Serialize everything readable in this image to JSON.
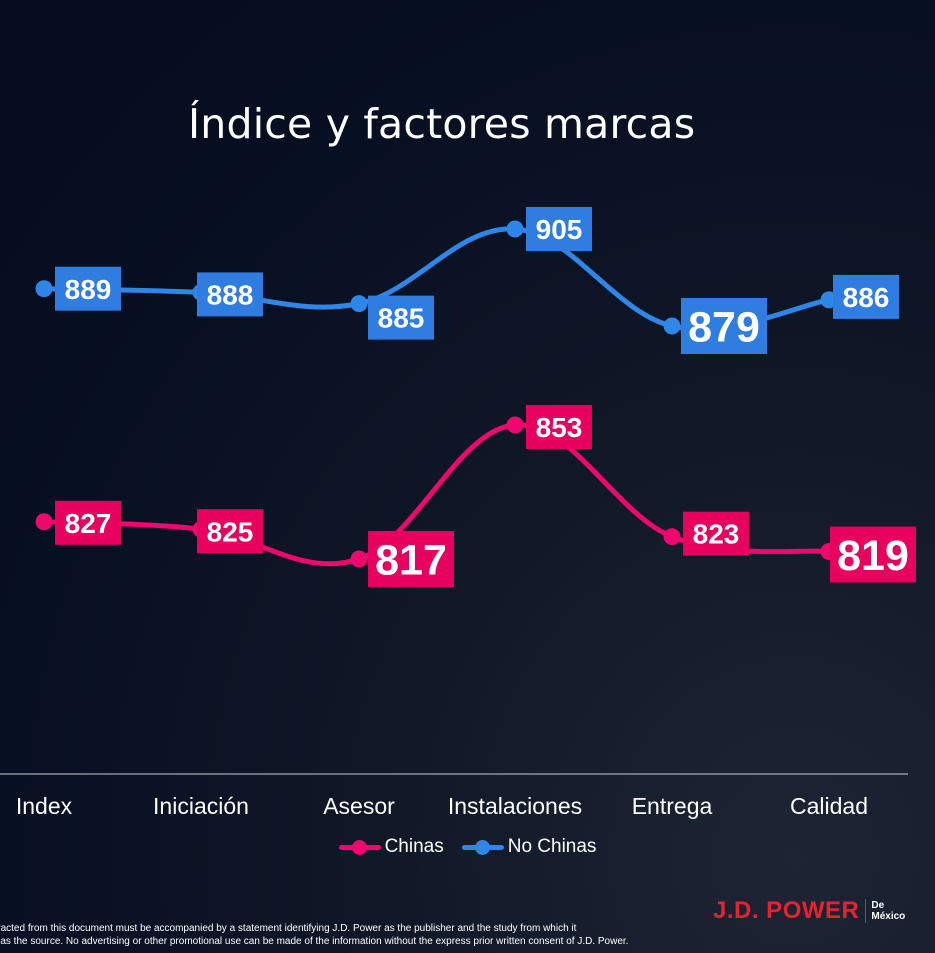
{
  "title": "Índice y factores marcas",
  "chart_data": {
    "type": "line",
    "title": "Índice y factores marcas",
    "categories": [
      "Index",
      "Iniciación",
      "Asesor",
      "Instalaciones",
      "Entrega",
      "Calidad"
    ],
    "series": [
      {
        "name": "No Chinas",
        "color": "#2d86e8",
        "label_bg": "#2f7de0",
        "values": [
          889,
          888,
          885,
          905,
          879,
          886
        ]
      },
      {
        "name": "Chinas",
        "color": "#f0066f",
        "label_bg": "#e8005f",
        "values": [
          827,
          825,
          817,
          853,
          823,
          819
        ]
      }
    ],
    "highlight_labels": {
      "No Chinas": [
        879
      ],
      "Chinas": [
        817,
        819
      ]
    },
    "legend_position": "bottom",
    "grid": false
  },
  "legend": [
    {
      "name": "Chinas",
      "color": "#f0066f"
    },
    {
      "name": "No Chinas",
      "color": "#2d86e8"
    }
  ],
  "footer": {
    "line1": "on extracted from this document must be accompanied by a statement identifying J.D. Power as the publisher and the study from which it",
    "line2": "d as the source. No advertising or other promotional use can be made of the information without the express prior written consent of J.D. Power."
  },
  "logo": {
    "main": "J.D. POWER",
    "sub1": "De",
    "sub2": "México"
  }
}
